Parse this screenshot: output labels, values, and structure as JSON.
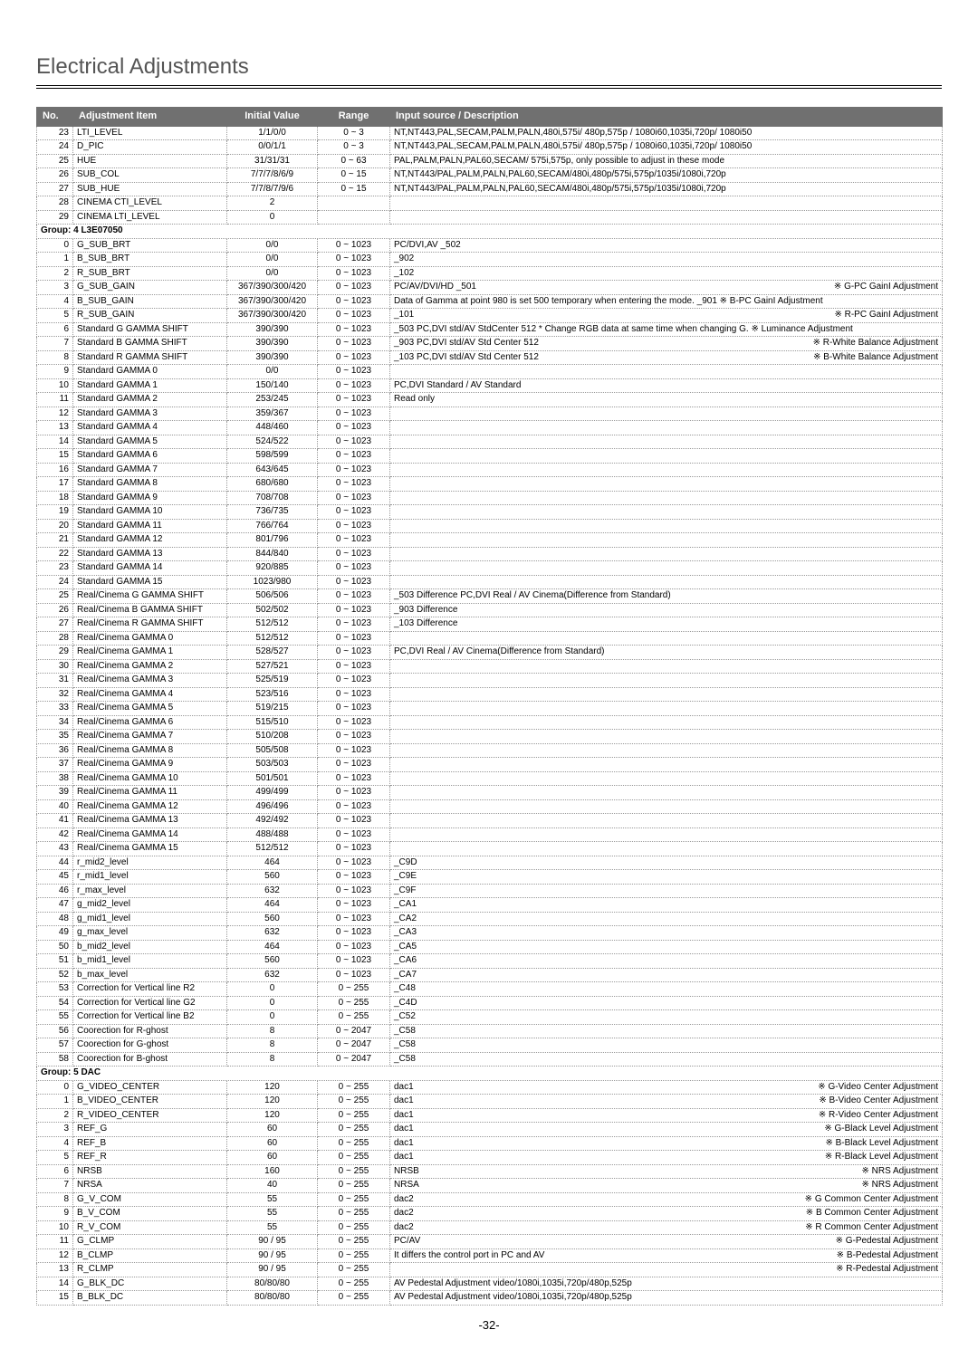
{
  "page_title": "Electrical Adjustments",
  "page_number": "-32-",
  "columns": [
    "No.",
    "Adjustment Item",
    "Initial Value",
    "Range",
    "Input source / Description"
  ],
  "rows": [
    {
      "no": "23",
      "item": "LTI_LEVEL",
      "initial": "1/1/0/0",
      "range": "0 ~ 3",
      "desc": "NT,NT443,PAL,SECAM,PALM,PALN,480i,575i/ 480p,575p / 1080i60,1035i,720p/ 1080i50"
    },
    {
      "no": "24",
      "item": "D_PIC",
      "initial": "0/0/1/1",
      "range": "0 ~ 3",
      "desc": "NT,NT443,PAL,SECAM,PALM,PALN,480i,575i/ 480p,575p / 1080i60,1035i,720p/ 1080i50"
    },
    {
      "no": "25",
      "item": "HUE",
      "initial": "31/31/31",
      "range": "0 ~ 63",
      "desc": "PAL,PALM,PALN,PAL60,SECAM/ 575i,575p, only possible to adjust in these mode"
    },
    {
      "no": "26",
      "item": "SUB_COL",
      "initial": "7/7/7/8/6/9",
      "range": "0 ~ 15",
      "desc": "NT,NT443/PAL,PALM,PALN,PAL60,SECAM/480i,480p/575i,575p/1035i/1080i,720p"
    },
    {
      "no": "27",
      "item": "SUB_HUE",
      "initial": "7/7/8/7/9/6",
      "range": "0 ~ 15",
      "desc": "NT,NT443/PAL,PALM,PALN,PAL60,SECAM/480i,480p/575i,575p/1035i/1080i,720p"
    },
    {
      "no": "28",
      "item": "CINEMA CTI_LEVEL",
      "initial": "2",
      "range": "",
      "desc": ""
    },
    {
      "no": "29",
      "item": "CINEMA LTI_LEVEL",
      "initial": "0",
      "range": "",
      "desc": ""
    },
    {
      "group": "Group: 4  L3E07050"
    },
    {
      "no": "0",
      "item": "G_SUB_BRT",
      "initial": "0/0",
      "range": "0 ~ 1023",
      "desc": "PC/DVI,AV _502"
    },
    {
      "no": "1",
      "item": "B_SUB_BRT",
      "initial": "0/0",
      "range": "0 ~ 1023",
      "desc": "_902"
    },
    {
      "no": "2",
      "item": "R_SUB_BRT",
      "initial": "0/0",
      "range": "0 ~ 1023",
      "desc": "_102"
    },
    {
      "no": "3",
      "item": "G_SUB_GAIN",
      "initial": "367/390/300/420",
      "range": "0 ~ 1023",
      "desc": "PC/AV/DVI/HD _501",
      "desc2": "※ G-PC GainI Adjustment"
    },
    {
      "no": "4",
      "item": "B_SUB_GAIN",
      "initial": "367/390/300/420",
      "range": "0 ~ 1023",
      "desc": "Data of Gamma at point 980 is set 500 temporary when entering the mode. _901 ※ B-PC GainI Adjustment"
    },
    {
      "no": "5",
      "item": "R_SUB_GAIN",
      "initial": "367/390/300/420",
      "range": "0 ~ 1023",
      "desc": "_101",
      "desc2": "※ R-PC GainI Adjustment"
    },
    {
      "no": "6",
      "item": "Standard G GAMMA SHIFT",
      "initial": "390/390",
      "range": "0 ~ 1023",
      "desc": "_503 PC,DVI std/AV StdCenter 512 * Change RGB data at same time when changing G. ※ Luminance Adjustment"
    },
    {
      "no": "7",
      "item": "Standard B GAMMA SHIFT",
      "initial": "390/390",
      "range": "0 ~ 1023",
      "desc": "_903 PC,DVI std/AV Std Center 512",
      "desc2": "※ R-White Balance Adjustment"
    },
    {
      "no": "8",
      "item": "Standard R GAMMA SHIFT",
      "initial": "390/390",
      "range": "0 ~ 1023",
      "desc": "_103 PC,DVI std/AV Std Center 512",
      "desc2": "※ B-White Balance Adjustment"
    },
    {
      "no": "9",
      "item": "Standard GAMMA 0",
      "initial": "0/0",
      "range": "0 ~ 1023",
      "desc": ""
    },
    {
      "no": "10",
      "item": "Standard GAMMA 1",
      "initial": "150/140",
      "range": "0 ~ 1023",
      "desc": "PC,DVI Standard / AV Standard"
    },
    {
      "no": "11",
      "item": "Standard GAMMA 2",
      "initial": "253/245",
      "range": "0 ~ 1023",
      "desc": "Read only"
    },
    {
      "no": "12",
      "item": "Standard GAMMA 3",
      "initial": "359/367",
      "range": "0 ~ 1023",
      "desc": ""
    },
    {
      "no": "13",
      "item": "Standard GAMMA 4",
      "initial": "448/460",
      "range": "0 ~ 1023",
      "desc": ""
    },
    {
      "no": "14",
      "item": "Standard GAMMA 5",
      "initial": "524/522",
      "range": "0 ~ 1023",
      "desc": ""
    },
    {
      "no": "15",
      "item": "Standard GAMMA 6",
      "initial": "598/599",
      "range": "0 ~ 1023",
      "desc": ""
    },
    {
      "no": "16",
      "item": "Standard GAMMA 7",
      "initial": "643/645",
      "range": "0 ~ 1023",
      "desc": ""
    },
    {
      "no": "17",
      "item": "Standard GAMMA 8",
      "initial": "680/680",
      "range": "0 ~ 1023",
      "desc": ""
    },
    {
      "no": "18",
      "item": "Standard GAMMA 9",
      "initial": "708/708",
      "range": "0 ~ 1023",
      "desc": ""
    },
    {
      "no": "19",
      "item": "Standard GAMMA 10",
      "initial": "736/735",
      "range": "0 ~ 1023",
      "desc": ""
    },
    {
      "no": "20",
      "item": "Standard GAMMA 11",
      "initial": "766/764",
      "range": "0 ~ 1023",
      "desc": ""
    },
    {
      "no": "21",
      "item": "Standard GAMMA 12",
      "initial": "801/796",
      "range": "0 ~ 1023",
      "desc": ""
    },
    {
      "no": "22",
      "item": "Standard GAMMA 13",
      "initial": "844/840",
      "range": "0 ~ 1023",
      "desc": ""
    },
    {
      "no": "23",
      "item": "Standard GAMMA 14",
      "initial": "920/885",
      "range": "0 ~ 1023",
      "desc": ""
    },
    {
      "no": "24",
      "item": "Standard GAMMA 15",
      "initial": "1023/980",
      "range": "0 ~ 1023",
      "desc": ""
    },
    {
      "no": "25",
      "item": "Real/Cinema G GAMMA SHIFT",
      "initial": "506/506",
      "range": "0 ~ 1023",
      "desc": "_503 Difference PC,DVI Real / AV Cinema(Difference from Standard)"
    },
    {
      "no": "26",
      "item": "Real/Cinema B GAMMA SHIFT",
      "initial": "502/502",
      "range": "0 ~ 1023",
      "desc": "_903 Difference"
    },
    {
      "no": "27",
      "item": "Real/Cinema R GAMMA SHIFT",
      "initial": "512/512",
      "range": "0 ~ 1023",
      "desc": "_103 Difference"
    },
    {
      "no": "28",
      "item": "Real/Cinema GAMMA 0",
      "initial": "512/512",
      "range": "0 ~ 1023",
      "desc": ""
    },
    {
      "no": "29",
      "item": "Real/Cinema GAMMA 1",
      "initial": "528/527",
      "range": "0 ~ 1023",
      "desc": "PC,DVI Real / AV Cinema(Difference from Standard)"
    },
    {
      "no": "30",
      "item": "Real/Cinema GAMMA 2",
      "initial": "527/521",
      "range": "0 ~ 1023",
      "desc": ""
    },
    {
      "no": "31",
      "item": "Real/Cinema GAMMA 3",
      "initial": "525/519",
      "range": "0 ~ 1023",
      "desc": ""
    },
    {
      "no": "32",
      "item": "Real/Cinema GAMMA 4",
      "initial": "523/516",
      "range": "0 ~ 1023",
      "desc": ""
    },
    {
      "no": "33",
      "item": "Real/Cinema GAMMA 5",
      "initial": "519/215",
      "range": "0 ~ 1023",
      "desc": ""
    },
    {
      "no": "34",
      "item": "Real/Cinema GAMMA 6",
      "initial": "515/510",
      "range": "0 ~ 1023",
      "desc": ""
    },
    {
      "no": "35",
      "item": "Real/Cinema GAMMA 7",
      "initial": "510/208",
      "range": "0 ~ 1023",
      "desc": ""
    },
    {
      "no": "36",
      "item": "Real/Cinema GAMMA 8",
      "initial": "505/508",
      "range": "0 ~ 1023",
      "desc": ""
    },
    {
      "no": "37",
      "item": "Real/Cinema GAMMA 9",
      "initial": "503/503",
      "range": "0 ~ 1023",
      "desc": ""
    },
    {
      "no": "38",
      "item": "Real/Cinema GAMMA 10",
      "initial": "501/501",
      "range": "0 ~ 1023",
      "desc": ""
    },
    {
      "no": "39",
      "item": "Real/Cinema GAMMA 11",
      "initial": "499/499",
      "range": "0 ~ 1023",
      "desc": ""
    },
    {
      "no": "40",
      "item": "Real/Cinema GAMMA 12",
      "initial": "496/496",
      "range": "0 ~ 1023",
      "desc": ""
    },
    {
      "no": "41",
      "item": "Real/Cinema GAMMA 13",
      "initial": "492/492",
      "range": "0 ~ 1023",
      "desc": ""
    },
    {
      "no": "42",
      "item": "Real/Cinema GAMMA 14",
      "initial": "488/488",
      "range": "0 ~ 1023",
      "desc": ""
    },
    {
      "no": "43",
      "item": "Real/Cinema GAMMA 15",
      "initial": "512/512",
      "range": "0 ~ 1023",
      "desc": ""
    },
    {
      "no": "44",
      "item": "r_mid2_level",
      "initial": "464",
      "range": "0 ~ 1023",
      "desc": "_C9D"
    },
    {
      "no": "45",
      "item": "r_mid1_level",
      "initial": "560",
      "range": "0 ~ 1023",
      "desc": "_C9E"
    },
    {
      "no": "46",
      "item": "r_max_level",
      "initial": "632",
      "range": "0 ~ 1023",
      "desc": "_C9F"
    },
    {
      "no": "47",
      "item": "g_mid2_level",
      "initial": "464",
      "range": "0 ~ 1023",
      "desc": "_CA1"
    },
    {
      "no": "48",
      "item": "g_mid1_level",
      "initial": "560",
      "range": "0 ~ 1023",
      "desc": "_CA2"
    },
    {
      "no": "49",
      "item": "g_max_level",
      "initial": "632",
      "range": "0 ~ 1023",
      "desc": "_CA3"
    },
    {
      "no": "50",
      "item": "b_mid2_level",
      "initial": "464",
      "range": "0 ~ 1023",
      "desc": "_CA5"
    },
    {
      "no": "51",
      "item": "b_mid1_level",
      "initial": "560",
      "range": "0 ~ 1023",
      "desc": "_CA6"
    },
    {
      "no": "52",
      "item": "b_max_level",
      "initial": "632",
      "range": "0 ~ 1023",
      "desc": "_CA7"
    },
    {
      "no": "53",
      "item": "Correction for Vertical line R2",
      "initial": "0",
      "range": "0 ~ 255",
      "desc": "_C48"
    },
    {
      "no": "54",
      "item": "Correction for Vertical line G2",
      "initial": "0",
      "range": "0 ~ 255",
      "desc": "_C4D"
    },
    {
      "no": "55",
      "item": "Correction for Vertical line B2",
      "initial": "0",
      "range": "0 ~ 255",
      "desc": "_C52"
    },
    {
      "no": "56",
      "item": "Coorection for R-ghost",
      "initial": "8",
      "range": "0 ~ 2047",
      "desc": "_C58"
    },
    {
      "no": "57",
      "item": "Coorection for G-ghost",
      "initial": "8",
      "range": "0 ~ 2047",
      "desc": "_C58"
    },
    {
      "no": "58",
      "item": "Coorection for B-ghost",
      "initial": "8",
      "range": "0 ~ 2047",
      "desc": "_C58"
    },
    {
      "group": "Group: 5  DAC"
    },
    {
      "no": "0",
      "item": "G_VIDEO_CENTER",
      "initial": "120",
      "range": "0 ~ 255",
      "desc": "dac1",
      "desc2": "※ G-Video Center Adjustment"
    },
    {
      "no": "1",
      "item": "B_VIDEO_CENTER",
      "initial": "120",
      "range": "0 ~ 255",
      "desc": "dac1",
      "desc2": "※ B-Video Center Adjustment"
    },
    {
      "no": "2",
      "item": "R_VIDEO_CENTER",
      "initial": "120",
      "range": "0 ~ 255",
      "desc": "dac1",
      "desc2": "※ R-Video Center Adjustment"
    },
    {
      "no": "3",
      "item": "REF_G",
      "initial": "60",
      "range": "0 ~ 255",
      "desc": "dac1",
      "desc2": "※ G-Black Level Adjustment"
    },
    {
      "no": "4",
      "item": "REF_B",
      "initial": "60",
      "range": "0 ~ 255",
      "desc": "dac1",
      "desc2": "※ B-Black Level Adjustment"
    },
    {
      "no": "5",
      "item": "REF_R",
      "initial": "60",
      "range": "0 ~ 255",
      "desc": "dac1",
      "desc2": "※ R-Black Level Adjustment"
    },
    {
      "no": "6",
      "item": "NRSB",
      "initial": "160",
      "range": "0 ~ 255",
      "desc": "NRSB",
      "desc2": "※ NRS Adjustment"
    },
    {
      "no": "7",
      "item": "NRSA",
      "initial": "40",
      "range": "0 ~ 255",
      "desc": "NRSA",
      "desc2": "※ NRS Adjustment"
    },
    {
      "no": "8",
      "item": "G_V_COM",
      "initial": "55",
      "range": "0 ~ 255",
      "desc": "dac2",
      "desc2": "※ G Common Center Adjustment"
    },
    {
      "no": "9",
      "item": "B_V_COM",
      "initial": "55",
      "range": "0 ~ 255",
      "desc": "dac2",
      "desc2": "※ B Common Center Adjustment"
    },
    {
      "no": "10",
      "item": "R_V_COM",
      "initial": "55",
      "range": "0 ~ 255",
      "desc": "dac2",
      "desc2": "※ R Common Center Adjustment"
    },
    {
      "no": "11",
      "item": "G_CLMP",
      "initial": "90 / 95",
      "range": "0 ~ 255",
      "desc": "PC/AV",
      "desc2": "※ G-Pedestal Adjustment"
    },
    {
      "no": "12",
      "item": "B_CLMP",
      "initial": "90 / 95",
      "range": "0 ~ 255",
      "desc": "It differs the control port in PC and AV",
      "desc2": "※ B-Pedestal Adjustment"
    },
    {
      "no": "13",
      "item": "R_CLMP",
      "initial": "90 / 95",
      "range": "0 ~ 255",
      "desc": "",
      "desc2": "※ R-Pedestal Adjustment"
    },
    {
      "no": "14",
      "item": "G_BLK_DC",
      "initial": "80/80/80",
      "range": "0 ~ 255",
      "desc": "AV Pedestal Adjustment video/1080i,1035i,720p/480p,525p"
    },
    {
      "no": "15",
      "item": "B_BLK_DC",
      "initial": "80/80/80",
      "range": "0 ~ 255",
      "desc": "AV Pedestal Adjustment video/1080i,1035i,720p/480p,525p"
    }
  ]
}
